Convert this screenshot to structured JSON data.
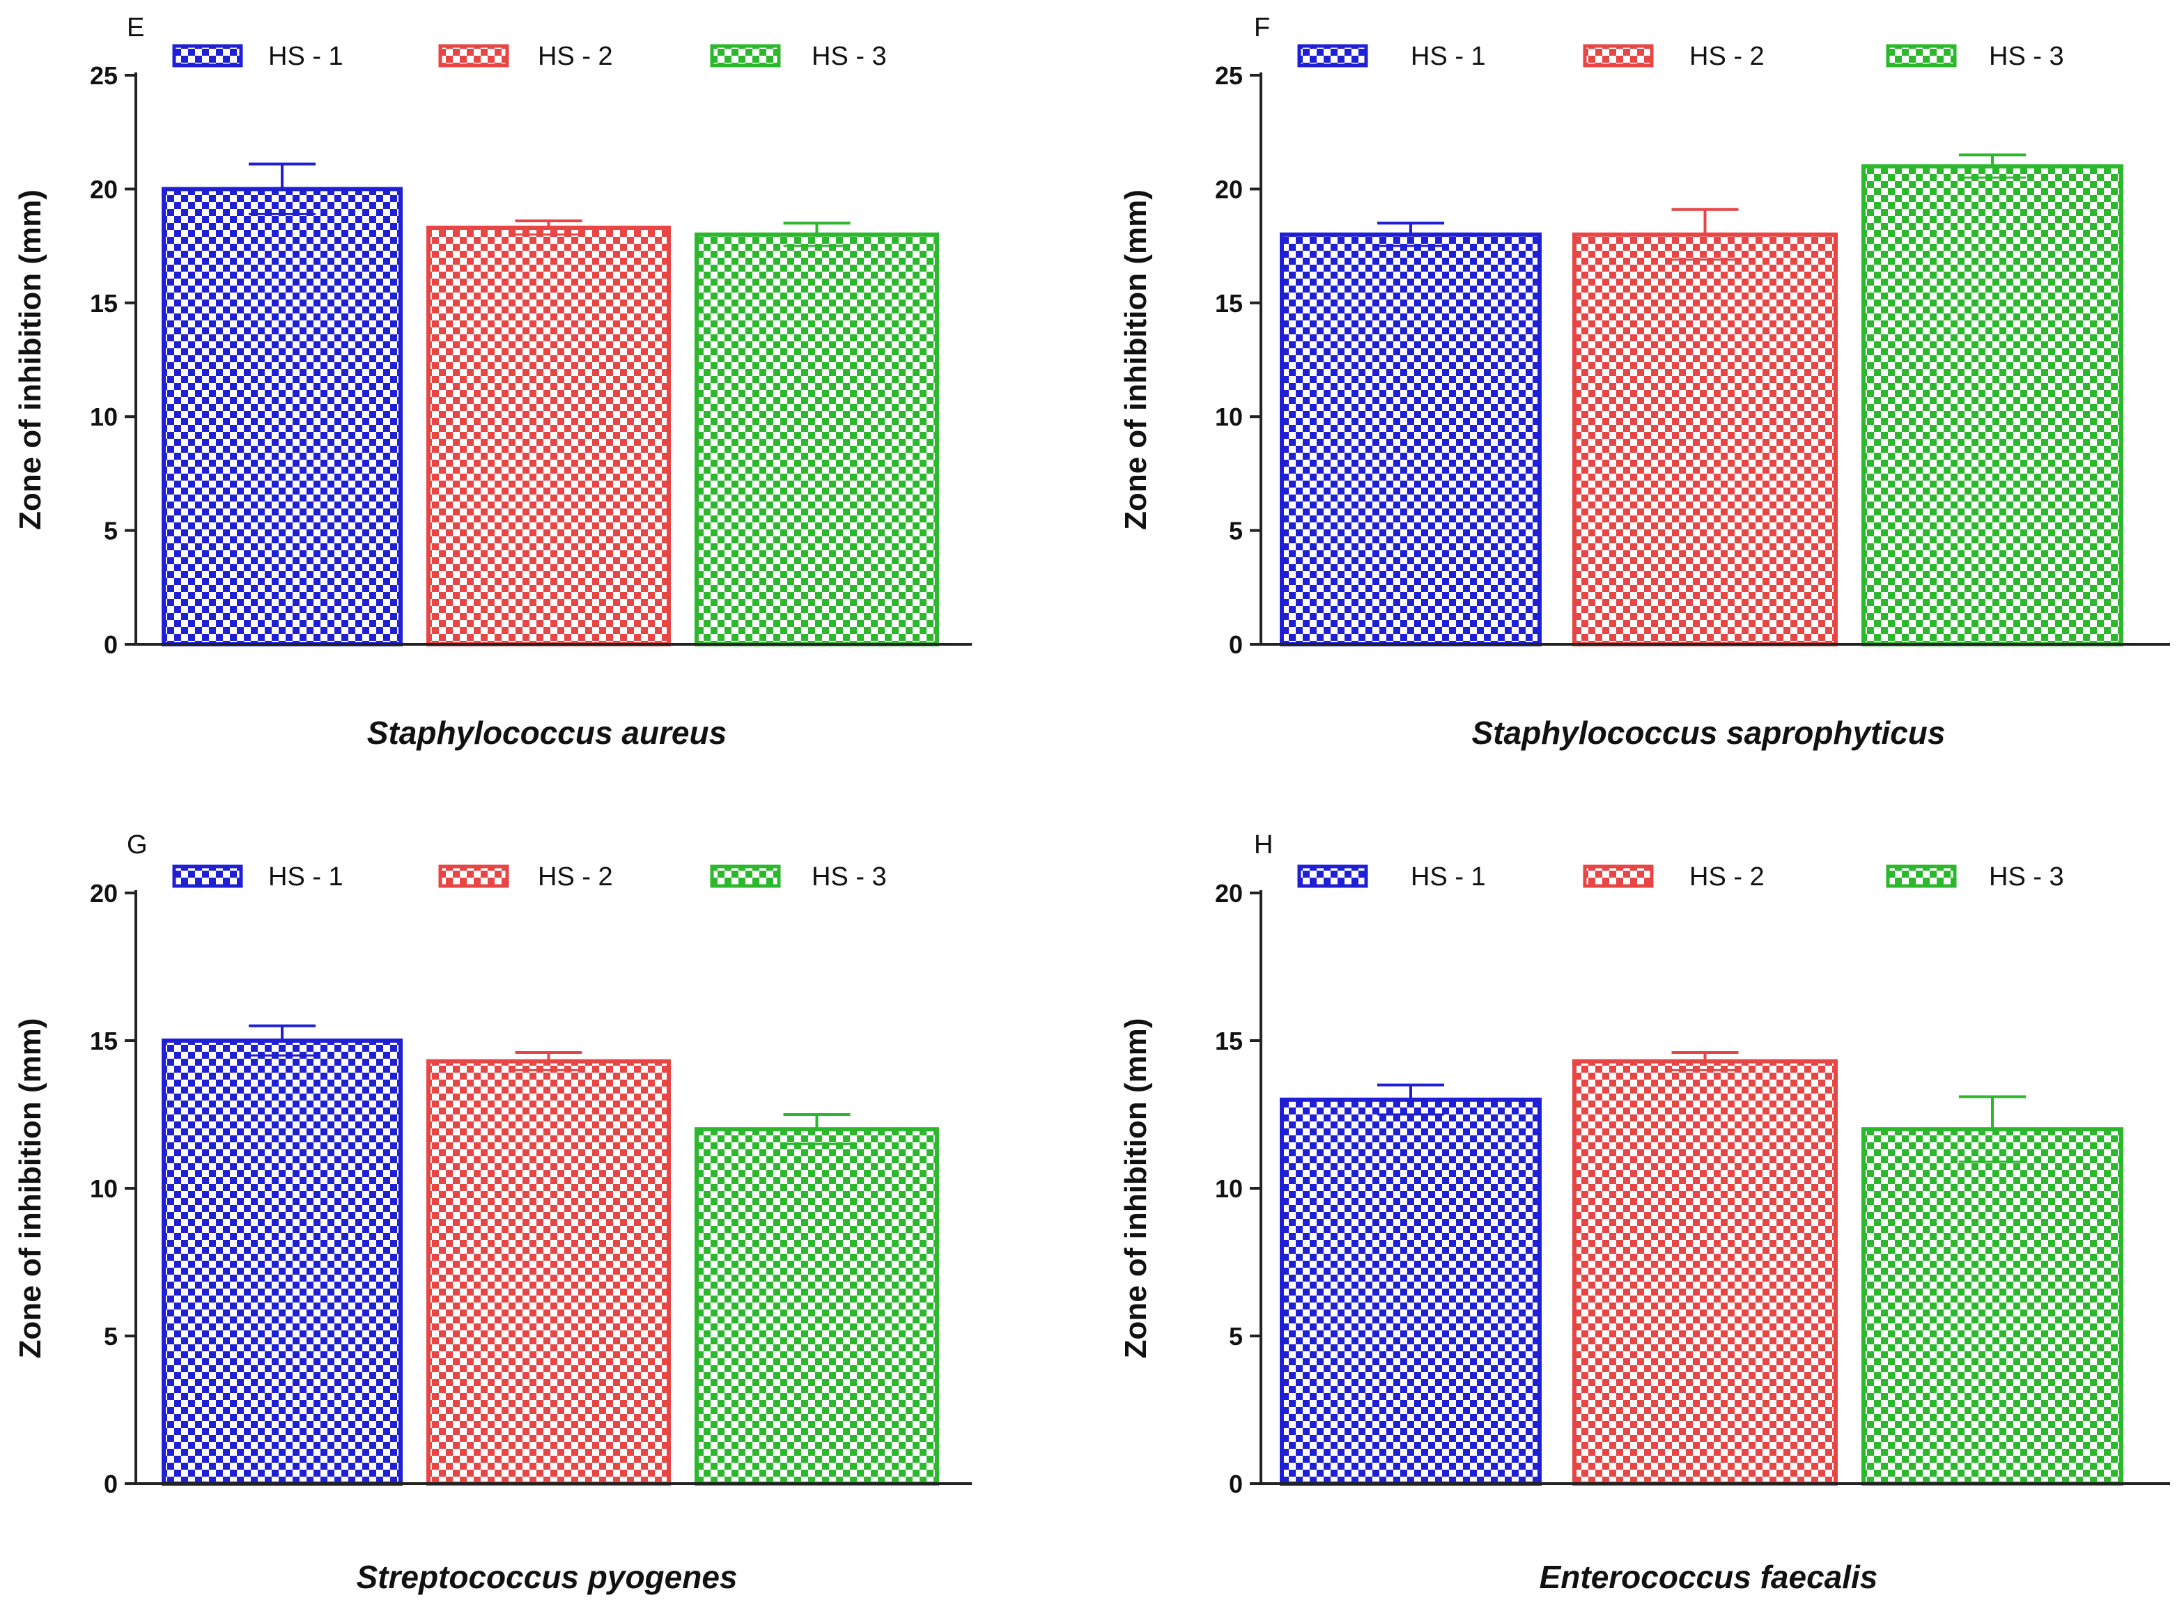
{
  "figure": {
    "legend_swatch_style": "checkerboard"
  },
  "chart_data": [
    {
      "type": "bar",
      "panel_label": "E",
      "title": "",
      "categories": [
        "HS - 1",
        "HS - 2",
        "HS - 3"
      ],
      "values": [
        20.0,
        18.3,
        18.0
      ],
      "errors": [
        1.1,
        0.3,
        0.5
      ],
      "colors": [
        "#1f1fd6",
        "#e84545",
        "#2cb82c"
      ],
      "legend": [
        "HS - 1",
        "HS - 2",
        "HS - 3"
      ],
      "xlabel": "Staphylococcus aureus",
      "ylabel": "Zone of inhibition (mm)",
      "ylim": [
        0,
        25
      ],
      "yticks": [
        0,
        5,
        10,
        15,
        20,
        25
      ],
      "grid": false,
      "legend_position": "top"
    },
    {
      "type": "bar",
      "panel_label": "F",
      "title": "",
      "categories": [
        "HS - 1",
        "HS - 2",
        "HS - 3"
      ],
      "values": [
        18.0,
        18.0,
        21.0
      ],
      "errors": [
        0.5,
        1.1,
        0.5
      ],
      "colors": [
        "#1f1fd6",
        "#e84545",
        "#2cb82c"
      ],
      "legend": [
        "HS - 1",
        "HS - 2",
        "HS - 3"
      ],
      "xlabel": "Staphylococcus saprophyticus",
      "ylabel": "Zone of inhibition (mm)",
      "ylim": [
        0,
        25
      ],
      "yticks": [
        0,
        5,
        10,
        15,
        20,
        25
      ],
      "grid": false,
      "legend_position": "top"
    },
    {
      "type": "bar",
      "panel_label": "G",
      "title": "",
      "categories": [
        "HS - 1",
        "HS - 2",
        "HS - 3"
      ],
      "values": [
        15.0,
        14.3,
        12.0
      ],
      "errors": [
        0.5,
        0.3,
        0.5
      ],
      "colors": [
        "#1f1fd6",
        "#e84545",
        "#2cb82c"
      ],
      "legend": [
        "HS - 1",
        "HS - 2",
        "HS - 3"
      ],
      "xlabel": "Streptococcus pyogenes",
      "ylabel": "Zone of inhibition (mm)",
      "ylim": [
        0,
        20
      ],
      "yticks": [
        0,
        5,
        10,
        15,
        20
      ],
      "grid": false,
      "legend_position": "top"
    },
    {
      "type": "bar",
      "panel_label": "H",
      "title": "",
      "categories": [
        "HS - 1",
        "HS - 2",
        "HS - 3"
      ],
      "values": [
        13.0,
        14.3,
        12.0
      ],
      "errors": [
        0.5,
        0.3,
        1.1
      ],
      "colors": [
        "#1f1fd6",
        "#e84545",
        "#2cb82c"
      ],
      "legend": [
        "HS - 1",
        "HS - 2",
        "HS - 3"
      ],
      "xlabel": "Enterococcus faecalis",
      "ylabel": "Zone of inhibition (mm)",
      "ylim": [
        0,
        20
      ],
      "yticks": [
        0,
        5,
        10,
        15,
        20
      ],
      "grid": false,
      "legend_position": "top"
    }
  ]
}
